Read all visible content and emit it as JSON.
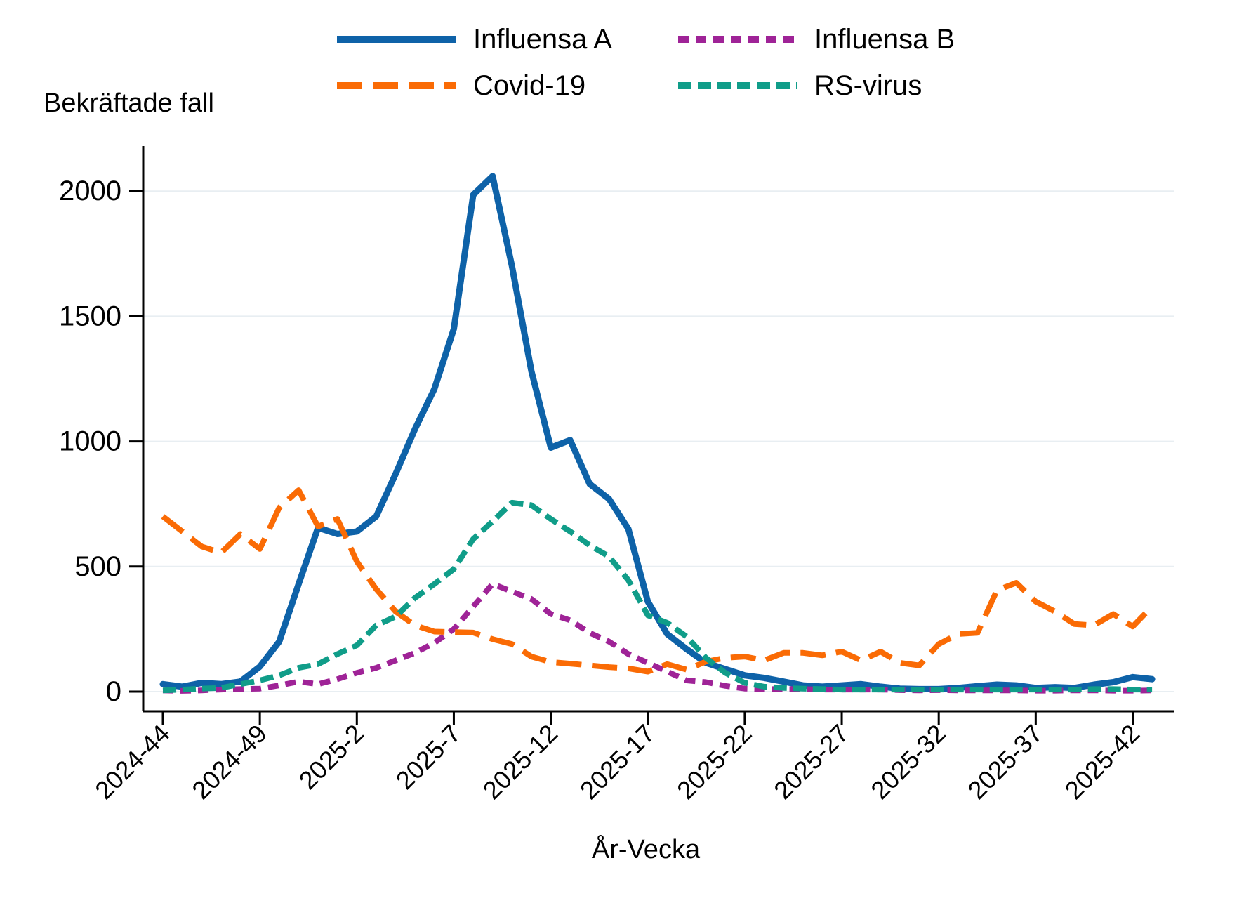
{
  "chart_data": {
    "type": "line",
    "title": "Bekräftade fall",
    "ylabel": "Bekräftade fall",
    "xlabel": "År-Vecka",
    "ylim": [
      0,
      2100
    ],
    "yticks": [
      0,
      500,
      1000,
      1500,
      2000
    ],
    "xtick_labels": [
      "2024-44",
      "2024-49",
      "2025-2",
      "2025-7",
      "2025-12",
      "2025-17",
      "2025-22",
      "2025-27",
      "2025-32",
      "2025-37",
      "2025-42"
    ],
    "grid": true,
    "grid_color": "#e8eef2",
    "axis_color": "#000000",
    "legend_position": "top",
    "categories": [
      "2024-44",
      "2024-45",
      "2024-46",
      "2024-47",
      "2024-48",
      "2024-49",
      "2024-50",
      "2024-51",
      "2024-52",
      "2025-1",
      "2025-2",
      "2025-3",
      "2025-4",
      "2025-5",
      "2025-6",
      "2025-7",
      "2025-8",
      "2025-9",
      "2025-10",
      "2025-11",
      "2025-12",
      "2025-13",
      "2025-14",
      "2025-15",
      "2025-16",
      "2025-17",
      "2025-18",
      "2025-19",
      "2025-20",
      "2025-21",
      "2025-22",
      "2025-23",
      "2025-24",
      "2025-25",
      "2025-26",
      "2025-27",
      "2025-28",
      "2025-29",
      "2025-30",
      "2025-31",
      "2025-32",
      "2025-33",
      "2025-34",
      "2025-35",
      "2025-36",
      "2025-37",
      "2025-38",
      "2025-39",
      "2025-40",
      "2025-41",
      "2025-42",
      "2025-43"
    ],
    "series": [
      {
        "name": "Influensa A",
        "color": "#0e62a8",
        "line_style": "solid",
        "values": [
          30,
          20,
          35,
          30,
          40,
          100,
          200,
          430,
          655,
          630,
          640,
          700,
          870,
          1050,
          1210,
          1450,
          1985,
          2060,
          1700,
          1280,
          975,
          1005,
          830,
          770,
          650,
          360,
          230,
          170,
          115,
          90,
          65,
          55,
          40,
          25,
          20,
          25,
          30,
          20,
          12,
          10,
          10,
          15,
          22,
          28,
          25,
          15,
          18,
          15,
          28,
          38,
          58,
          50
        ]
      },
      {
        "name": "Influensa B",
        "color": "#9f2397",
        "line_style": "shortdash",
        "values": [
          5,
          3,
          5,
          8,
          10,
          12,
          25,
          40,
          30,
          50,
          75,
          95,
          125,
          155,
          195,
          250,
          340,
          430,
          400,
          370,
          310,
          285,
          235,
          200,
          150,
          115,
          80,
          45,
          38,
          23,
          12,
          10,
          10,
          10,
          8,
          8,
          8,
          8,
          6,
          5,
          6,
          5,
          5,
          5,
          5,
          4,
          4,
          5,
          5,
          4,
          4,
          5
        ]
      },
      {
        "name": "Covid-19",
        "color": "#fa6b05",
        "line_style": "longdash",
        "values": [
          700,
          640,
          580,
          555,
          630,
          570,
          735,
          805,
          660,
          690,
          520,
          410,
          320,
          265,
          240,
          238,
          236,
          210,
          190,
          140,
          118,
          112,
          105,
          98,
          93,
          80,
          110,
          88,
          120,
          135,
          140,
          125,
          155,
          155,
          145,
          160,
          125,
          160,
          115,
          105,
          190,
          230,
          235,
          405,
          435,
          360,
          320,
          270,
          265,
          310,
          260,
          340
        ]
      },
      {
        "name": "RS-virus",
        "color": "#109d89",
        "line_style": "dash",
        "values": [
          5,
          8,
          12,
          15,
          30,
          45,
          65,
          95,
          110,
          150,
          185,
          265,
          300,
          375,
          430,
          490,
          610,
          680,
          755,
          745,
          690,
          640,
          585,
          540,
          445,
          305,
          275,
          220,
          135,
          75,
          35,
          20,
          15,
          12,
          10,
          8,
          8,
          8,
          8,
          8,
          8,
          8,
          8,
          8,
          8,
          8,
          8,
          8,
          10,
          10,
          8,
          8
        ]
      }
    ]
  }
}
